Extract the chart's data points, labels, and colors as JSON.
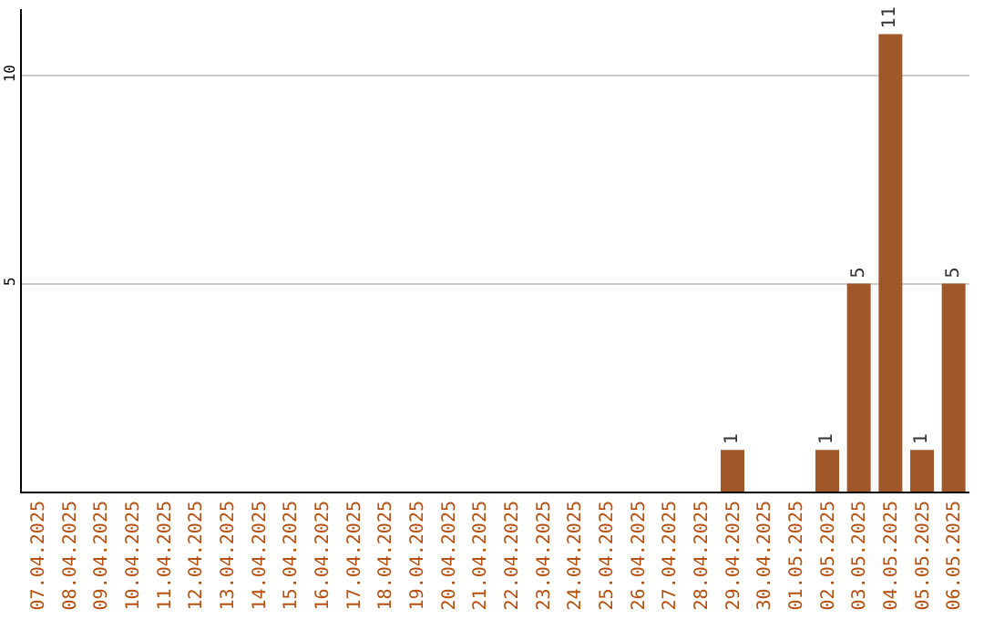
{
  "chart_data": {
    "type": "bar",
    "categories": [
      "07.04.2025",
      "08.04.2025",
      "09.04.2025",
      "10.04.2025",
      "11.04.2025",
      "12.04.2025",
      "13.04.2025",
      "14.04.2025",
      "15.04.2025",
      "16.04.2025",
      "17.04.2025",
      "18.04.2025",
      "19.04.2025",
      "20.04.2025",
      "21.04.2025",
      "22.04.2025",
      "23.04.2025",
      "24.04.2025",
      "25.04.2025",
      "26.04.2025",
      "27.04.2025",
      "28.04.2025",
      "29.04.2025",
      "30.04.2025",
      "01.05.2025",
      "02.05.2025",
      "03.05.2025",
      "04.05.2025",
      "05.05.2025",
      "06.05.2025"
    ],
    "values": [
      0,
      0,
      0,
      0,
      0,
      0,
      0,
      0,
      0,
      0,
      0,
      0,
      0,
      0,
      0,
      0,
      0,
      0,
      0,
      0,
      0,
      0,
      1,
      0,
      0,
      1,
      5,
      11,
      1,
      5
    ],
    "value_labels": [
      null,
      null,
      null,
      null,
      null,
      null,
      null,
      null,
      null,
      null,
      null,
      null,
      null,
      null,
      null,
      null,
      null,
      null,
      null,
      null,
      null,
      null,
      "1",
      null,
      null,
      "1",
      "5",
      "11",
      "1",
      "5"
    ],
    "color": "#a0582a",
    "ylim": [
      0,
      11.6
    ],
    "yticks": [
      5,
      10
    ],
    "grid": "y",
    "legend": false
  }
}
